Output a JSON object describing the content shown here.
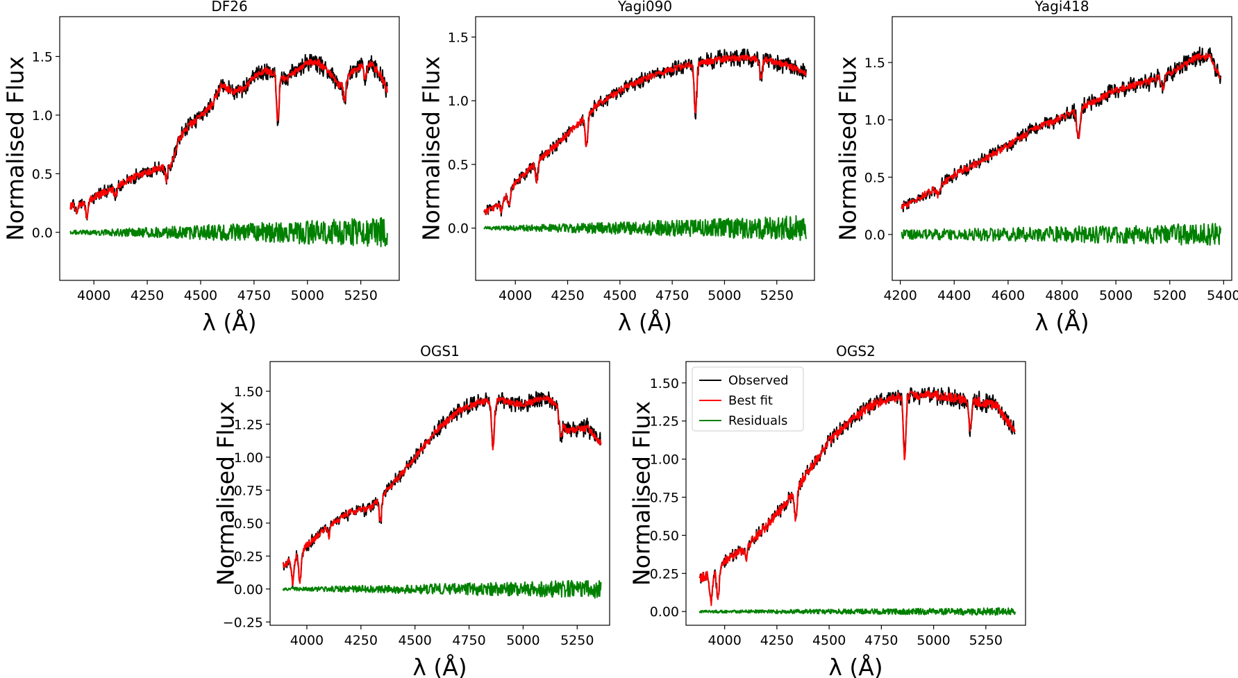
{
  "chart_data": [
    {
      "type": "line",
      "title": "DF26",
      "xlabel": "λ (Å)",
      "ylabel": "Normalised Flux",
      "xlim": [
        3840,
        5430
      ],
      "ylim": [
        -0.41,
        1.84
      ],
      "xticks": [
        4000,
        4250,
        4500,
        4750,
        5000,
        5250
      ],
      "yticks": [
        0.0,
        0.5,
        1.0,
        1.5
      ],
      "ytick_labels": [
        "0.0",
        "0.5",
        "1.0",
        "1.5"
      ],
      "x_range": [
        3890,
        5375
      ],
      "grid": false,
      "series": [
        {
          "name": "Observed",
          "color": "#000000",
          "noise": 0.075,
          "x": [
            3890,
            3950,
            4000,
            4100,
            4200,
            4300,
            4360,
            4400,
            4450,
            4500,
            4550,
            4600,
            4650,
            4700,
            4750,
            4800,
            4850,
            4900,
            4950,
            5000,
            5050,
            5100,
            5150,
            5200,
            5250,
            5300,
            5340,
            5375
          ],
          "y": [
            0.22,
            0.24,
            0.3,
            0.38,
            0.48,
            0.55,
            0.58,
            0.8,
            0.92,
            0.99,
            1.08,
            1.26,
            1.2,
            1.22,
            1.32,
            1.38,
            1.35,
            1.3,
            1.38,
            1.45,
            1.45,
            1.36,
            1.25,
            1.35,
            1.42,
            1.43,
            1.35,
            1.2
          ]
        },
        {
          "name": "Best fit",
          "color": "#ff0000",
          "noise": 0.03,
          "x": [
            3890,
            3950,
            4000,
            4100,
            4200,
            4300,
            4360,
            4400,
            4450,
            4500,
            4550,
            4600,
            4650,
            4700,
            4750,
            4800,
            4850,
            4900,
            4950,
            5000,
            5050,
            5100,
            5150,
            5200,
            5250,
            5300,
            5340,
            5375
          ],
          "y": [
            0.22,
            0.24,
            0.3,
            0.38,
            0.48,
            0.55,
            0.58,
            0.8,
            0.92,
            0.99,
            1.08,
            1.26,
            1.2,
            1.22,
            1.32,
            1.38,
            1.35,
            1.3,
            1.38,
            1.45,
            1.45,
            1.36,
            1.25,
            1.35,
            1.42,
            1.43,
            1.35,
            1.2
          ],
          "dips": [
            [
              3920,
              0.06
            ],
            [
              3968,
              0.12
            ],
            [
              4102,
              0.08
            ],
            [
              4340,
              0.12
            ],
            [
              4861,
              0.38
            ],
            [
              5175,
              0.18
            ],
            [
              5270,
              0.12
            ]
          ]
        },
        {
          "name": "Residuals",
          "color": "#008000",
          "x": [
            3890,
            5375
          ],
          "y": [
            0.0,
            0.0
          ],
          "noise_ramp": [
            0.015,
            0.13
          ]
        }
      ]
    },
    {
      "type": "line",
      "title": "Yagi090",
      "xlabel": "λ (Å)",
      "ylabel": "Normalised Flux",
      "xlim": [
        3810,
        5430
      ],
      "ylim": [
        -0.41,
        1.66
      ],
      "xticks": [
        4000,
        4250,
        4500,
        4750,
        5000,
        5250
      ],
      "yticks": [
        0.0,
        0.5,
        1.0,
        1.5
      ],
      "ytick_labels": [
        "0.0",
        "0.5",
        "1.0",
        "1.5"
      ],
      "x_range": [
        3850,
        5390
      ],
      "grid": false,
      "series": [
        {
          "name": "Observed",
          "color": "#000000",
          "noise": 0.06,
          "x": [
            3850,
            3920,
            4000,
            4100,
            4200,
            4300,
            4400,
            4500,
            4600,
            4700,
            4800,
            4900,
            5000,
            5100,
            5200,
            5300,
            5390
          ],
          "y": [
            0.12,
            0.18,
            0.35,
            0.52,
            0.66,
            0.82,
            0.98,
            1.08,
            1.16,
            1.22,
            1.27,
            1.3,
            1.33,
            1.34,
            1.32,
            1.28,
            1.22
          ]
        },
        {
          "name": "Best fit",
          "color": "#ff0000",
          "noise": 0.025,
          "x": [
            3850,
            3920,
            4000,
            4100,
            4200,
            4300,
            4400,
            4500,
            4600,
            4700,
            4800,
            4900,
            5000,
            5100,
            5200,
            5300,
            5390
          ],
          "y": [
            0.12,
            0.18,
            0.35,
            0.52,
            0.66,
            0.82,
            0.98,
            1.08,
            1.16,
            1.22,
            1.27,
            1.3,
            1.33,
            1.34,
            1.32,
            1.28,
            1.22
          ],
          "dips": [
            [
              3935,
              0.08
            ],
            [
              3970,
              0.1
            ],
            [
              4102,
              0.15
            ],
            [
              4340,
              0.25
            ],
            [
              4861,
              0.4
            ],
            [
              5175,
              0.15
            ]
          ]
        },
        {
          "name": "Residuals",
          "color": "#008000",
          "x": [
            3850,
            5390
          ],
          "y": [
            0.0,
            0.0
          ],
          "noise_ramp": [
            0.012,
            0.1
          ]
        }
      ]
    },
    {
      "type": "line",
      "title": "Yagi418",
      "xlabel": "λ (Å)",
      "ylabel": "Normalised Flux",
      "xlim": [
        4170,
        5430
      ],
      "ylim": [
        -0.4,
        1.9
      ],
      "xticks": [
        4200,
        4400,
        4600,
        4800,
        5000,
        5200,
        5400
      ],
      "yticks": [
        0.0,
        0.5,
        1.0,
        1.5
      ],
      "ytick_labels": [
        "0.0",
        "0.5",
        "1.0",
        "1.5"
      ],
      "x_range": [
        4205,
        5390
      ],
      "grid": false,
      "series": [
        {
          "name": "Observed",
          "color": "#000000",
          "noise": 0.07,
          "x": [
            4205,
            4300,
            4400,
            4500,
            4600,
            4700,
            4800,
            4900,
            5000,
            5100,
            5200,
            5300,
            5350,
            5390
          ],
          "y": [
            0.24,
            0.36,
            0.52,
            0.64,
            0.78,
            0.92,
            1.02,
            1.14,
            1.26,
            1.32,
            1.4,
            1.55,
            1.55,
            1.35
          ]
        },
        {
          "name": "Best fit",
          "color": "#ff0000",
          "noise": 0.03,
          "x": [
            4205,
            4300,
            4400,
            4500,
            4600,
            4700,
            4800,
            4900,
            5000,
            5100,
            5200,
            5300,
            5350,
            5390
          ],
          "y": [
            0.24,
            0.36,
            0.52,
            0.64,
            0.78,
            0.92,
            1.02,
            1.14,
            1.26,
            1.32,
            1.4,
            1.55,
            1.55,
            1.35
          ],
          "dips": [
            [
              4340,
              0.08
            ],
            [
              4861,
              0.25
            ],
            [
              5175,
              0.1
            ]
          ]
        },
        {
          "name": "Residuals",
          "color": "#008000",
          "x": [
            4205,
            5390
          ],
          "y": [
            0.0,
            0.0
          ],
          "noise_ramp": [
            0.04,
            0.1
          ]
        }
      ]
    },
    {
      "type": "line",
      "title": "OGS1",
      "xlabel": "λ (Å)",
      "ylabel": "Normalised Flux",
      "xlim": [
        3830,
        5400
      ],
      "ylim": [
        -0.275,
        1.725
      ],
      "xticks": [
        4000,
        4250,
        4500,
        4750,
        5000,
        5250
      ],
      "yticks": [
        -0.25,
        0.0,
        0.25,
        0.5,
        0.75,
        1.0,
        1.25,
        1.5
      ],
      "ytick_labels": [
        "−0.25",
        "0.00",
        "0.25",
        "0.50",
        "0.75",
        "1.00",
        "1.25",
        "1.50"
      ],
      "x_range": [
        3890,
        5360
      ],
      "grid": false,
      "series": [
        {
          "name": "Observed",
          "color": "#000000",
          "noise": 0.06,
          "x": [
            3890,
            3950,
            4000,
            4100,
            4200,
            4300,
            4400,
            4500,
            4600,
            4700,
            4800,
            4900,
            5000,
            5100,
            5150,
            5200,
            5300,
            5360
          ],
          "y": [
            0.18,
            0.25,
            0.33,
            0.48,
            0.58,
            0.62,
            0.8,
            1.0,
            1.2,
            1.35,
            1.42,
            1.43,
            1.4,
            1.45,
            1.4,
            1.2,
            1.22,
            1.1
          ]
        },
        {
          "name": "Best fit",
          "color": "#ff0000",
          "noise": 0.025,
          "x": [
            3890,
            3950,
            4000,
            4100,
            4200,
            4300,
            4400,
            4500,
            4600,
            4700,
            4800,
            4900,
            5000,
            5100,
            5150,
            5200,
            5300,
            5360
          ],
          "y": [
            0.18,
            0.25,
            0.33,
            0.48,
            0.58,
            0.62,
            0.8,
            1.0,
            1.2,
            1.35,
            1.42,
            1.43,
            1.4,
            1.45,
            1.4,
            1.2,
            1.22,
            1.1
          ],
          "dips": [
            [
              3935,
              0.18
            ],
            [
              3968,
              0.22
            ],
            [
              4102,
              0.08
            ],
            [
              4340,
              0.18
            ],
            [
              4861,
              0.35
            ],
            [
              5175,
              0.15
            ]
          ]
        },
        {
          "name": "Residuals",
          "color": "#008000",
          "x": [
            3890,
            5360
          ],
          "y": [
            0.0,
            0.0
          ],
          "noise_ramp": [
            0.012,
            0.07
          ]
        }
      ]
    },
    {
      "type": "line",
      "title": "OGS2",
      "xlabel": "λ (Å)",
      "ylabel": "Normalised Flux",
      "xlim": [
        3815,
        5440
      ],
      "ylim": [
        -0.09,
        1.64
      ],
      "xticks": [
        4000,
        4250,
        4500,
        4750,
        5000,
        5250
      ],
      "yticks": [
        0.0,
        0.25,
        0.5,
        0.75,
        1.0,
        1.25,
        1.5
      ],
      "ytick_labels": [
        "0.00",
        "0.25",
        "0.50",
        "0.75",
        "1.00",
        "1.25",
        "1.50"
      ],
      "x_range": [
        3880,
        5390
      ],
      "grid": false,
      "legend": {
        "position": "upper left",
        "entries": [
          "Observed",
          "Best fit",
          "Residuals"
        ]
      },
      "series": [
        {
          "name": "Observed",
          "color": "#000000",
          "noise": 0.045,
          "x": [
            3880,
            3950,
            4000,
            4100,
            4200,
            4300,
            4400,
            4500,
            4600,
            4700,
            4800,
            4900,
            5000,
            5100,
            5200,
            5300,
            5390
          ],
          "y": [
            0.22,
            0.25,
            0.33,
            0.42,
            0.56,
            0.72,
            0.92,
            1.12,
            1.25,
            1.35,
            1.4,
            1.42,
            1.42,
            1.4,
            1.38,
            1.35,
            1.18
          ]
        },
        {
          "name": "Best fit",
          "color": "#ff0000",
          "noise": 0.03,
          "x": [
            3880,
            3950,
            4000,
            4100,
            4200,
            4300,
            4400,
            4500,
            4600,
            4700,
            4800,
            4900,
            5000,
            5100,
            5200,
            5300,
            5390
          ],
          "y": [
            0.22,
            0.25,
            0.33,
            0.42,
            0.56,
            0.72,
            0.92,
            1.12,
            1.25,
            1.35,
            1.4,
            1.42,
            1.42,
            1.4,
            1.38,
            1.35,
            1.18
          ],
          "dips": [
            [
              3935,
              0.18
            ],
            [
              3968,
              0.2
            ],
            [
              4102,
              0.08
            ],
            [
              4340,
              0.2
            ],
            [
              4861,
              0.42
            ],
            [
              5175,
              0.18
            ]
          ]
        },
        {
          "name": "Residuals",
          "color": "#008000",
          "x": [
            3880,
            5390
          ],
          "y": [
            0.0,
            0.0
          ],
          "noise_ramp": [
            0.008,
            0.025
          ]
        }
      ]
    }
  ]
}
